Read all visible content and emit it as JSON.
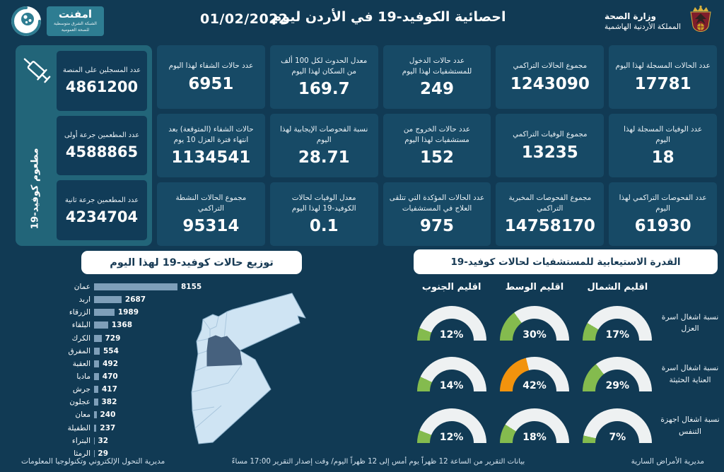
{
  "palette": {
    "bg": "#113a54",
    "panel_teal": "#226579",
    "stat_card": "#174a66",
    "vax_card": "#113c58",
    "bar_color": "#7e9fb9",
    "gauge_track": "#eef1f2",
    "green": "#84bb4e",
    "orange": "#f2930d",
    "badge_text": "#173a54"
  },
  "header": {
    "date": "01/02/2022",
    "title": "احصائية الكوفيد-19 في الأردن ليوم",
    "ministry_line1": "وزارة الصحة",
    "ministry_line2": "المملكة الأردنية الهاشمية",
    "emphnet_name": "امفنت",
    "emphnet_sub1": "الشبكة الشرق متوسطية",
    "emphnet_sub2": "للصحة العمومية"
  },
  "vaccine_panel": {
    "side_label": "مطعوم كوفيد-19",
    "cards": [
      {
        "label": "عدد المسجلين على المنصة",
        "value": "4861200"
      },
      {
        "label": "عدد المطعمين جرعة أولى",
        "value": "4588865"
      },
      {
        "label": "عدد المطعمين جرعة ثانية",
        "value": "4234704"
      }
    ]
  },
  "stats_grid": {
    "cards": [
      {
        "label": "عدد الحالات المسجلة لهذا اليوم",
        "value": "17781"
      },
      {
        "label": "مجموع الحالات التراكمي",
        "value": "1243090"
      },
      {
        "label": "عدد حالات الدخول للمستشفيات لهذا اليوم",
        "value": "249"
      },
      {
        "label": "معدل الحدوث لكل 100 ألف من السكان لهذا اليوم",
        "value": "169.7"
      },
      {
        "label": "عدد حالات الشفاء لهذا اليوم",
        "value": "6951"
      },
      {
        "label": "عدد الوفيات المسجلة لهذا اليوم",
        "value": "18"
      },
      {
        "label": "مجموع الوفيات التراكمي",
        "value": "13235"
      },
      {
        "label": "عدد حالات الخروج من مستشفيات لهذا اليوم",
        "value": "152"
      },
      {
        "label": "نسبة الفحوصات الإيجابية لهذا اليوم",
        "value": "28.71"
      },
      {
        "label": "حالات الشفاء (المتوقعة) بعد انتهاء فترة العزل 10 يوم",
        "value": "1134541"
      },
      {
        "label": "عدد الفحوصات التراكمي لهذا اليوم",
        "value": "61930"
      },
      {
        "label": "مجموع الفحوصات المخبرية التراكمي",
        "value": "14758170"
      },
      {
        "label": "عدد الحالات المؤكدة التي تتلقى العلاج في المستشفيات",
        "value": "975"
      },
      {
        "label": "معدل الوفيات لحالات الكوفيد-19 لهذا اليوم",
        "value": "0.1"
      },
      {
        "label": "مجموع الحالات النشطة التراكمي",
        "value": "95314"
      }
    ]
  },
  "map": {
    "country": "الأردن",
    "fill_color": "#cfe4f3",
    "highlight_color": "#46617e"
  },
  "footer": {
    "left": "مديرية التحول الإلكتروني وتكنولوجيا المعلومات",
    "center": "بيانات التقرير من الساعة 12 ظهراً يوم أمس إلى 12 ظهراً اليوم/ وقت إصدار التقرير 17:00 مساءً",
    "right": "مديرية الأمراض السارية"
  },
  "chart_data": [
    {
      "type": "bar",
      "orientation": "horizontal",
      "title": "توزيع حالات كوفيد-19 لهذا اليوم",
      "categories": [
        "عمان",
        "اربد",
        "الزرقاء",
        "البلقاء",
        "الكرك",
        "المفرق",
        "العقبة",
        "مادبا",
        "جرش",
        "عجلون",
        "معان",
        "الطفيلة",
        "البتراء",
        "الرمثا"
      ],
      "values": [
        8155,
        2687,
        1989,
        1368,
        729,
        554,
        492,
        470,
        417,
        382,
        240,
        237,
        32,
        29
      ],
      "xlim": [
        0,
        8155
      ],
      "value_labels": true,
      "bar_color": "#7e9fb9"
    },
    {
      "type": "gauge-grid",
      "title": "القدرة الاستيعابية للمستشفيات لحالات كوفيد-19",
      "columns": [
        "اقليم الجنوب",
        "اقليم الوسط",
        "اقليم الشمال"
      ],
      "rows": [
        "نسبة اشغال اسرة العزل",
        "نسبة اشغال اسرة العناية الحثيثة",
        "نسبة اشغال اجهزة التنفس"
      ],
      "values_pct": [
        [
          12,
          30,
          17
        ],
        [
          14,
          42,
          29
        ],
        [
          12,
          18,
          7
        ]
      ],
      "colors": [
        [
          "green",
          "green",
          "green"
        ],
        [
          "green",
          "orange",
          "green"
        ],
        [
          "green",
          "green",
          "green"
        ]
      ],
      "range": [
        0,
        100
      ]
    }
  ]
}
